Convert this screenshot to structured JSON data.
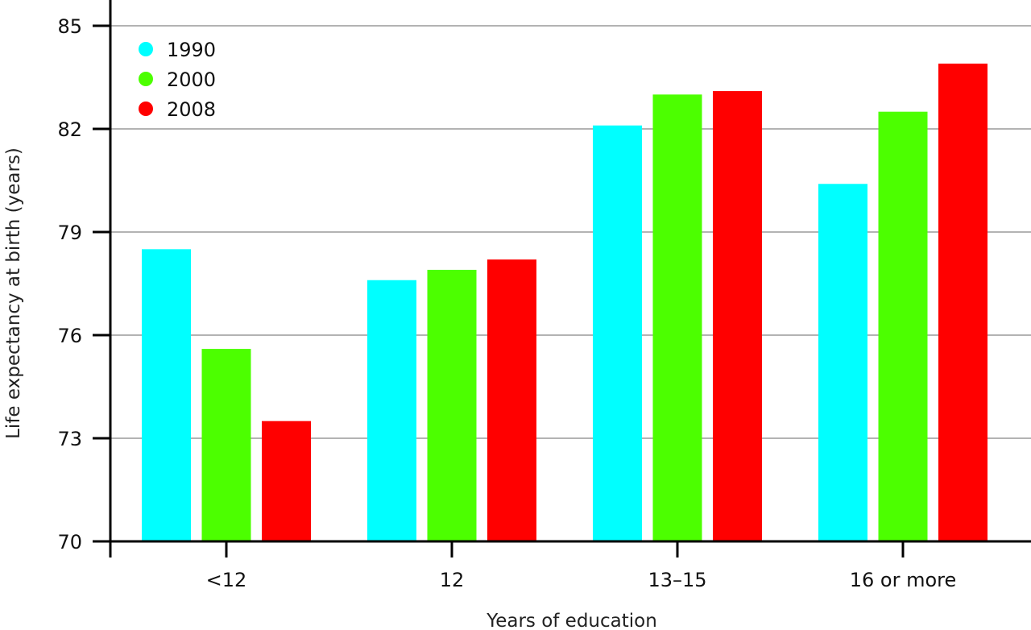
{
  "chart_data": {
    "type": "bar",
    "xlabel": "Years of education",
    "ylabel": "Life expectancy at birth (years)",
    "ylim": [
      70,
      85
    ],
    "yticks": [
      70,
      73,
      76,
      79,
      82,
      85
    ],
    "grid": true,
    "legend_position": "top-left",
    "categories": [
      "<12",
      "12",
      "13–15",
      "16 or more"
    ],
    "series": [
      {
        "name": "1990",
        "color": "#00ffff",
        "values": [
          78.5,
          77.6,
          82.1,
          80.4
        ]
      },
      {
        "name": "2000",
        "color": "#4cff00",
        "values": [
          75.6,
          77.9,
          83.0,
          82.5
        ]
      },
      {
        "name": "2008",
        "color": "#ff0000",
        "values": [
          73.5,
          78.2,
          83.1,
          83.9
        ]
      }
    ]
  }
}
